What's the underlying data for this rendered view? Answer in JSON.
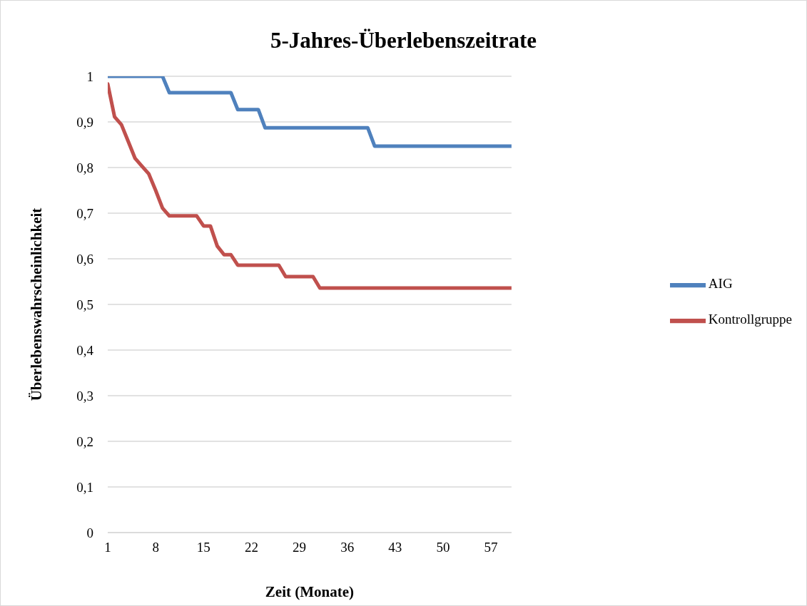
{
  "chart_data": {
    "type": "line",
    "title": "5-Jahres-Überlebenszeitrate",
    "xlabel": "Zeit (Monate)",
    "ylabel": "Überlebenswahrscheinlichkeit",
    "x": [
      1,
      2,
      3,
      4,
      5,
      6,
      7,
      8,
      9,
      10,
      11,
      12,
      13,
      14,
      15,
      16,
      17,
      18,
      19,
      20,
      21,
      22,
      23,
      24,
      25,
      26,
      27,
      28,
      29,
      30,
      31,
      32,
      33,
      34,
      35,
      36,
      37,
      38,
      39,
      40,
      41,
      42,
      43,
      44,
      45,
      46,
      47,
      48,
      49,
      50,
      51,
      52,
      53,
      54,
      55,
      56,
      57,
      58,
      59,
      60
    ],
    "series": [
      {
        "name": "AIG",
        "color": "#4f81bd",
        "values": [
          1,
          1,
          1,
          1,
          1,
          1,
          1,
          1,
          1,
          0.964,
          0.964,
          0.964,
          0.964,
          0.964,
          0.964,
          0.964,
          0.964,
          0.964,
          0.964,
          0.927,
          0.927,
          0.927,
          0.927,
          0.887,
          0.887,
          0.887,
          0.887,
          0.887,
          0.887,
          0.887,
          0.887,
          0.887,
          0.887,
          0.887,
          0.887,
          0.887,
          0.887,
          0.887,
          0.887,
          0.847,
          0.847,
          0.847,
          0.847,
          0.847,
          0.847,
          0.847,
          0.847,
          0.847,
          0.847,
          0.847,
          0.847,
          0.847,
          0.847,
          0.847,
          0.847,
          0.847,
          0.847,
          0.847,
          0.847,
          0.847
        ]
      },
      {
        "name": "Kontrollgruppe",
        "color": "#c0504d",
        "values": [
          0.983,
          0.911,
          0.894,
          0.857,
          0.82,
          0.803,
          0.786,
          0.75,
          0.711,
          0.694,
          0.694,
          0.694,
          0.694,
          0.694,
          0.672,
          0.672,
          0.628,
          0.609,
          0.609,
          0.586,
          0.586,
          0.586,
          0.586,
          0.586,
          0.586,
          0.586,
          0.561,
          0.561,
          0.561,
          0.561,
          0.561,
          0.536,
          0.536,
          0.536,
          0.536,
          0.536,
          0.536,
          0.536,
          0.536,
          0.536,
          0.536,
          0.536,
          0.536,
          0.536,
          0.536,
          0.536,
          0.536,
          0.536,
          0.536,
          0.536,
          0.536,
          0.536,
          0.536,
          0.536,
          0.536,
          0.536,
          0.536,
          0.536,
          0.536,
          0.536
        ]
      }
    ],
    "xlim": [
      1,
      60
    ],
    "xticks": [
      1,
      8,
      15,
      22,
      29,
      36,
      43,
      50,
      57
    ],
    "ylim": [
      0,
      1
    ],
    "yticks": [
      0,
      {
        "value": 0.1,
        "label": "0,1"
      },
      {
        "value": 0.2,
        "label": "0,2"
      },
      {
        "value": 0.3,
        "label": "0,3"
      },
      {
        "value": 0.4,
        "label": "0,4"
      },
      {
        "value": 0.5,
        "label": "0,5"
      },
      {
        "value": 0.6,
        "label": "0,6"
      },
      {
        "value": 0.7,
        "label": "0,7"
      },
      {
        "value": 0.8,
        "label": "0,8"
      },
      {
        "value": 0.9,
        "label": "0,9"
      },
      1
    ],
    "grid": "y",
    "legend": "right",
    "marker": "none",
    "line_style": "solid"
  }
}
